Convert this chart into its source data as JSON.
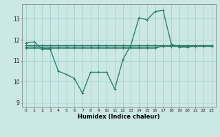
{
  "title": "",
  "xlabel": "Humidex (Indice chaleur)",
  "background_color": "#cce8e4",
  "grid_color": "#99cccc",
  "line_color": "#2e7d6e",
  "xlim": [
    -0.5,
    23.5
  ],
  "ylim": [
    8.8,
    13.7
  ],
  "yticks": [
    9,
    10,
    11,
    12,
    13
  ],
  "xticks": [
    0,
    1,
    2,
    3,
    4,
    5,
    6,
    7,
    8,
    9,
    10,
    11,
    12,
    13,
    14,
    15,
    16,
    17,
    18,
    19,
    20,
    21,
    22,
    23
  ],
  "xtick_labels": [
    "0",
    "1",
    "2",
    "3",
    "4",
    "5",
    "6",
    "7",
    "8",
    "9",
    "10",
    "11",
    "12",
    "13",
    "14",
    "15",
    "16",
    "17",
    "18",
    "19",
    "20",
    "21",
    "22",
    "23"
  ],
  "series": [
    [
      11.85,
      11.9,
      11.55,
      11.55,
      10.5,
      10.35,
      10.15,
      9.45,
      10.45,
      10.45,
      10.45,
      9.65,
      11.05,
      11.75,
      13.05,
      12.95,
      13.35,
      13.4,
      11.8,
      11.65,
      11.65,
      11.7,
      11.7,
      11.7
    ],
    [
      11.75,
      11.75,
      11.75,
      11.75,
      11.75,
      11.75,
      11.75,
      11.75,
      11.75,
      11.75,
      11.75,
      11.75,
      11.75,
      11.75,
      11.75,
      11.75,
      11.75,
      11.75,
      11.75,
      11.75,
      11.75,
      11.75,
      11.75,
      11.75
    ],
    [
      11.6,
      11.6,
      11.6,
      11.6,
      11.6,
      11.6,
      11.6,
      11.6,
      11.6,
      11.6,
      11.6,
      11.6,
      11.6,
      11.6,
      11.6,
      11.6,
      11.6,
      11.7,
      11.7,
      11.7,
      11.7,
      11.7,
      11.7,
      11.7
    ],
    [
      11.65,
      11.65,
      11.65,
      11.65,
      11.65,
      11.65,
      11.65,
      11.65,
      11.65,
      11.65,
      11.65,
      11.65,
      11.65,
      11.65,
      11.65,
      11.65,
      11.65,
      11.68,
      11.68,
      11.68,
      11.68,
      11.68,
      11.68,
      11.68
    ]
  ]
}
